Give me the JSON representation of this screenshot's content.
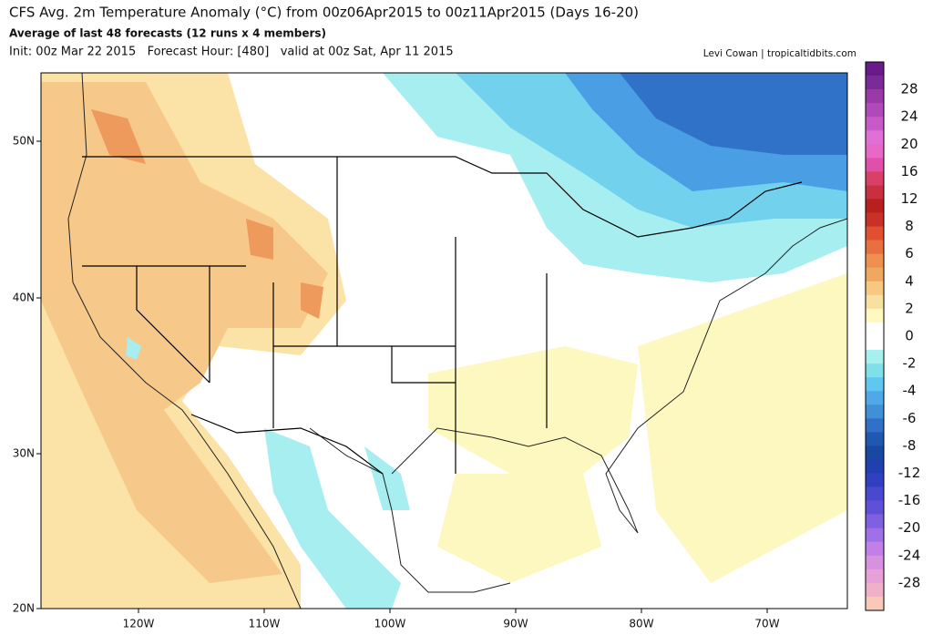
{
  "header": {
    "title": "CFS Avg. 2m Temperature Anomaly (°C) from 00z06Apr2015 to 00z11Apr2015 (Days 16-20)",
    "subtitle": "Average of last 48 forecasts (12 runs x 4 members)",
    "init": "Init: 00z Mar 22 2015   Forecast Hour: [480]   valid at 00z Sat, Apr 11 2015",
    "credit": "Levi Cowan | tropicaltidbits.com"
  },
  "map": {
    "lat_labels": [
      "50N",
      "40N",
      "30N",
      "20N"
    ],
    "lon_labels": [
      "120W",
      "110W",
      "100W",
      "90W",
      "80W",
      "70W"
    ]
  },
  "colorbar": {
    "labels": [
      "28",
      "24",
      "20",
      "16",
      "12",
      "8",
      "6",
      "4",
      "2",
      "0",
      "-2",
      "-4",
      "-6",
      "-8",
      "-12",
      "-16",
      "-20",
      "-24",
      "-28"
    ],
    "colors": [
      "#6a1b8a",
      "#7b2a9a",
      "#9a3aa8",
      "#b04ab8",
      "#c85ac8",
      "#e070d8",
      "#e868c8",
      "#e050a8",
      "#d84068",
      "#c83040",
      "#b82020",
      "#c83028",
      "#e05030",
      "#e87040",
      "#f09050",
      "#f0a860",
      "#f8c880",
      "#f8e0a0",
      "#fff8c0",
      "#ffffff",
      "#ffffff",
      "#a8f0f0",
      "#80e0e8",
      "#60c8f0",
      "#50a8e8",
      "#4090d8",
      "#3070c8",
      "#2058b0",
      "#1848a0",
      "#2040b0",
      "#3040c0",
      "#4848d0",
      "#6050d8",
      "#8060e0",
      "#a070e8",
      "#c080e8",
      "#d890e0",
      "#e8a0d8",
      "#f0b0c8",
      "#f8c8b8"
    ]
  }
}
